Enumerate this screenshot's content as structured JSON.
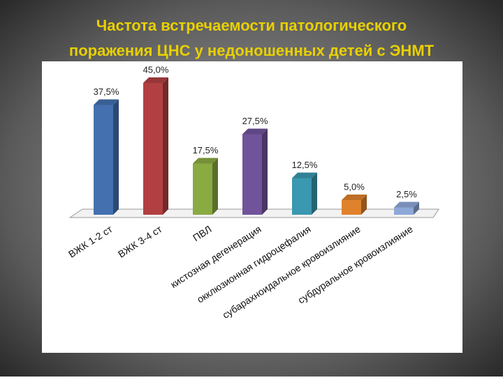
{
  "chart_data": {
    "type": "bar3d",
    "title": [
      "Частота встречаемости патологического",
      "поражения ЦНС у недоношенных детей с ЭНМТ"
    ],
    "categories": [
      "ВЖК 1-2 ст",
      "ВЖК 3-4 ст",
      "ПВЛ",
      "кистозная дегенерация",
      "окклюзионная гидроцефалия",
      "субарахноидальное кровоизлияние",
      "субдуральное кровоизлияние"
    ],
    "values": [
      37.5,
      45.0,
      17.5,
      27.5,
      12.5,
      5.0,
      2.5
    ],
    "value_labels": [
      "37,5%",
      "45,0%",
      "17,5%",
      "27,5%",
      "12,5%",
      "5,0%",
      "2,5%"
    ],
    "colors": [
      "#4470b0",
      "#b24042",
      "#8aaa42",
      "#70539a",
      "#3a98b0",
      "#e0822c",
      "#8ea8d8"
    ]
  }
}
